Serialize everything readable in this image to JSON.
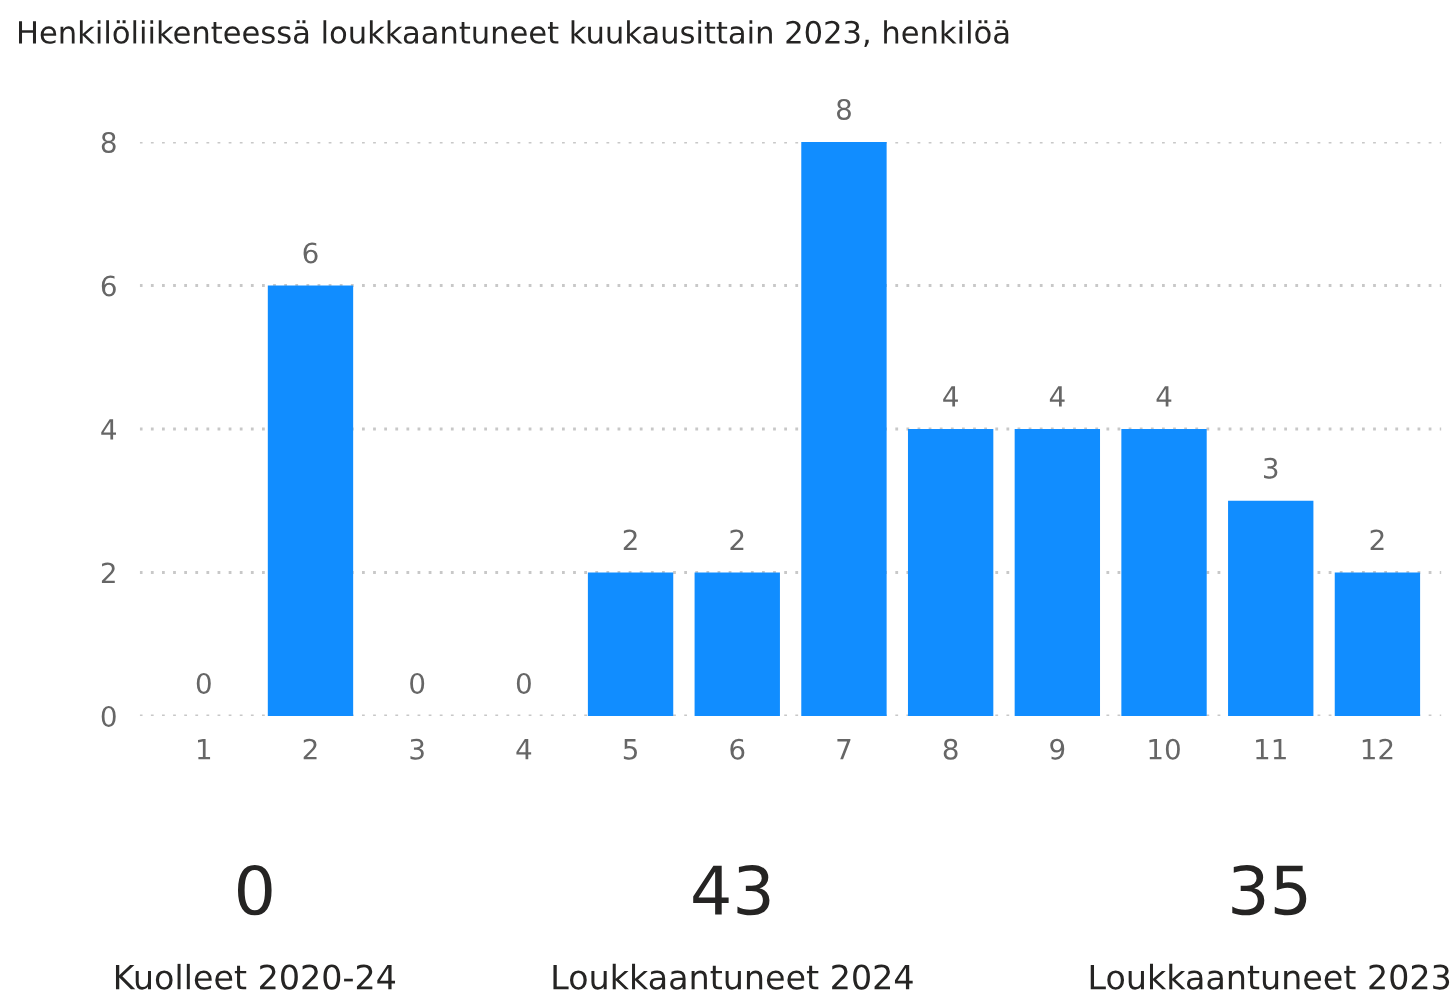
{
  "chart_data": [
    {
      "type": "bar",
      "title": "Henkilöliikenteessä loukkaantuneet kuukausittain 2023, henkilöä",
      "categories": [
        "1",
        "2",
        "3",
        "4",
        "5",
        "6",
        "7",
        "8",
        "9",
        "10",
        "11",
        "12"
      ],
      "values": [
        0,
        6,
        0,
        0,
        2,
        2,
        8,
        4,
        4,
        4,
        3,
        2
      ],
      "color": "#118dff",
      "ylim": [
        0,
        8
      ],
      "yticks": [
        0,
        2,
        4,
        6,
        8
      ],
      "grid": "y",
      "data_labels": true
    },
    {
      "type": "other",
      "annotations": [
        "0",
        "Kuolleet 2020-24",
        "43",
        "Loukkaantuneet 2024",
        "35",
        "Loukkaantuneet 2023"
      ]
    }
  ]
}
